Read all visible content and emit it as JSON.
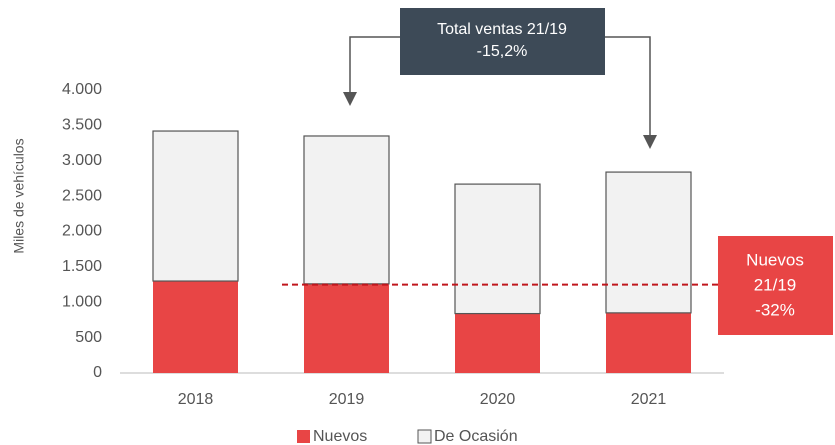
{
  "chart_data": {
    "type": "stacked_bar",
    "y_label": "Miles de vehículos",
    "categories": [
      "2018",
      "2019",
      "2020",
      "2021"
    ],
    "series": [
      {
        "name": "Nuevos",
        "color": "#e84545",
        "values": [
          1300,
          1260,
          840,
          850
        ]
      },
      {
        "name": "De Ocasión",
        "color": "#f2f2f2",
        "values": [
          2120,
          2090,
          1830,
          1990
        ]
      }
    ],
    "ylim": [
      0,
      4000
    ],
    "yticks": [
      0,
      500,
      {
        "value": 1000,
        "label": "1.000"
      },
      {
        "value": 1500,
        "label": "1.500"
      },
      {
        "value": 2000,
        "label": "2.000"
      },
      {
        "value": 2500,
        "label": "2.500"
      },
      {
        "value": 3000,
        "label": "3.000"
      },
      {
        "value": 3500,
        "label": "3.500"
      },
      {
        "value": 4000,
        "label": "4.000"
      }
    ],
    "reference_line": 1250,
    "annotations": [
      {
        "lines": [
          "Total ventas 21/19",
          "-15,2%"
        ]
      },
      {
        "lines": [
          "Nuevos",
          "21/19",
          "-32%"
        ]
      }
    ],
    "legend": "bottom"
  }
}
